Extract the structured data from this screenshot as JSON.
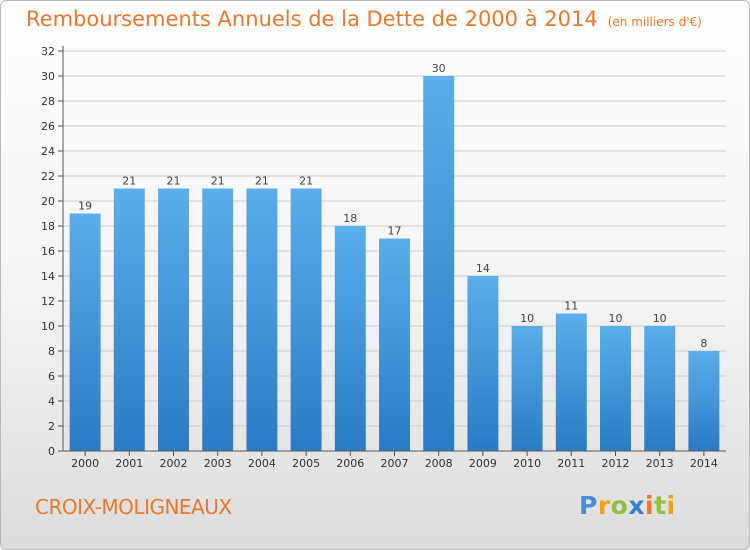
{
  "header": {
    "title": "Remboursements Annuels de la Dette de 2000 à 2014",
    "subtitle": "(en milliers d'€)"
  },
  "footer": {
    "commune": "CROIX-MOLIGNEAUX",
    "brand": "Proxiti",
    "brand_letters": [
      "P",
      "r",
      "o",
      "x",
      "i",
      "t",
      "i"
    ]
  },
  "colors": {
    "title": "#e8792c",
    "bar_top": "#5aaeea",
    "bar_bottom": "#2a7bc4",
    "grid": "#cccccc"
  },
  "chart_data": {
    "type": "bar",
    "title": "Remboursements Annuels de la Dette de 2000 à 2014",
    "subtitle": "(en milliers d'€)",
    "xlabel": "",
    "ylabel": "",
    "categories": [
      "2000",
      "2001",
      "2002",
      "2003",
      "2004",
      "2005",
      "2006",
      "2007",
      "2008",
      "2009",
      "2010",
      "2011",
      "2012",
      "2013",
      "2014"
    ],
    "values": [
      19,
      21,
      21,
      21,
      21,
      21,
      18,
      17,
      30,
      14,
      10,
      11,
      10,
      10,
      8
    ],
    "ylim": [
      0,
      32
    ],
    "ytick_step": 2,
    "grid": "horizontal",
    "data_labels": true
  }
}
